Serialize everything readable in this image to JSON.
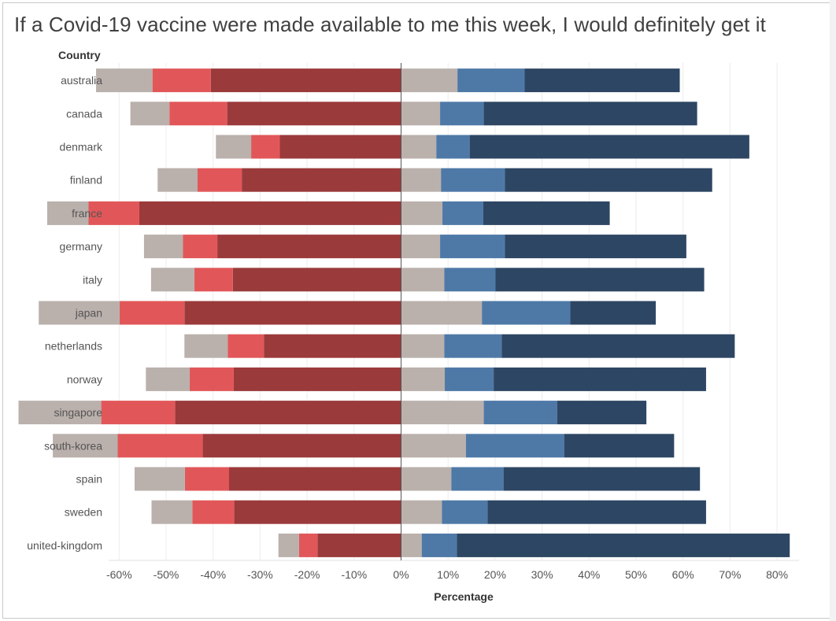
{
  "chart_data": {
    "type": "bar",
    "subtype": "diverging-stacked-horizontal",
    "title": "If a Covid-19 vaccine were made available to me this week, I would definitely get it",
    "category_header": "Country",
    "xlabel": "Percentage",
    "ylabel": "",
    "xlim": [
      -0.62,
      0.85
    ],
    "x_ticks": [
      -0.6,
      -0.5,
      -0.4,
      -0.3,
      -0.2,
      -0.1,
      0,
      0.1,
      0.2,
      0.3,
      0.4,
      0.5,
      0.6,
      0.7,
      0.8
    ],
    "x_tick_labels": [
      "-60%",
      "-50%",
      "-40%",
      "-30%",
      "-20%",
      "-10%",
      "0%",
      "10%",
      "20%",
      "30%",
      "40%",
      "50%",
      "60%",
      "70%",
      "80%"
    ],
    "grid": "vertical",
    "legend": "none",
    "categories": [
      "australia",
      "canada",
      "denmark",
      "finland",
      "france",
      "germany",
      "italy",
      "japan",
      "netherlands",
      "norway",
      "singapore",
      "south-korea",
      "spain",
      "sweden",
      "united-kingdom"
    ],
    "series": [
      {
        "color": "#9b3a3b",
        "side": "negative",
        "values": [
          -0.405,
          -0.37,
          -0.258,
          -0.339,
          -0.557,
          -0.391,
          -0.358,
          -0.461,
          -0.292,
          -0.356,
          -0.481,
          -0.422,
          -0.366,
          -0.355,
          -0.178
        ]
      },
      {
        "color": "#e15759",
        "side": "negative",
        "values": [
          -0.124,
          -0.123,
          -0.061,
          -0.094,
          -0.108,
          -0.073,
          -0.082,
          -0.138,
          -0.077,
          -0.094,
          -0.157,
          -0.181,
          -0.094,
          -0.089,
          -0.039
        ]
      },
      {
        "color": "#bab0ac",
        "side": "negative",
        "values": [
          -0.12,
          -0.083,
          -0.075,
          -0.085,
          -0.088,
          -0.083,
          -0.092,
          -0.172,
          -0.092,
          -0.093,
          -0.176,
          -0.138,
          -0.107,
          -0.087,
          -0.044
        ]
      },
      {
        "color": "#bab0ac",
        "side": "positive",
        "values": [
          0.12,
          0.083,
          0.075,
          0.085,
          0.088,
          0.083,
          0.092,
          0.172,
          0.092,
          0.093,
          0.176,
          0.138,
          0.107,
          0.087,
          0.044
        ]
      },
      {
        "color": "#4e79a7",
        "side": "positive",
        "values": [
          0.143,
          0.093,
          0.071,
          0.136,
          0.087,
          0.138,
          0.109,
          0.188,
          0.122,
          0.104,
          0.156,
          0.209,
          0.111,
          0.097,
          0.075
        ]
      },
      {
        "color": "#2d4663",
        "side": "positive",
        "values": [
          0.33,
          0.454,
          0.595,
          0.441,
          0.269,
          0.386,
          0.444,
          0.182,
          0.496,
          0.452,
          0.19,
          0.234,
          0.418,
          0.465,
          0.708
        ]
      }
    ]
  }
}
